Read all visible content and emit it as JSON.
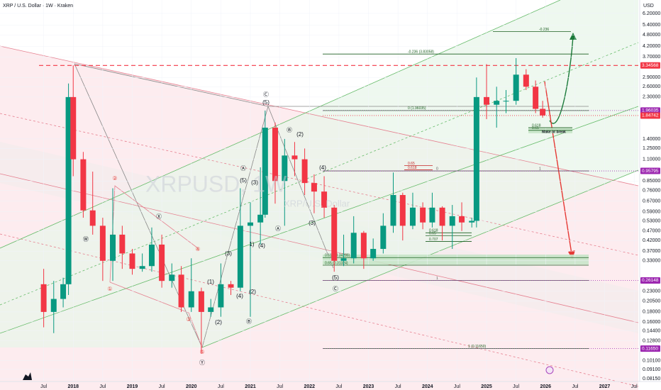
{
  "chart_data": {
    "type": "candlestick",
    "title": "XRP / U.S. Dollar · 1W · Kraken",
    "currency": "USD",
    "watermark": "XRPUSD, 1W",
    "watermark_sub": "XRP/U.S. Dollar",
    "log_scale": true,
    "up_color": "#089981",
    "down_color": "#f23645",
    "x": [
      2017.5,
      2017.67,
      2017.83,
      2017.92,
      2018.0,
      2018.17,
      2018.33,
      2018.5,
      2018.67,
      2018.83,
      2019.0,
      2019.17,
      2019.33,
      2019.5,
      2019.67,
      2019.83,
      2020.0,
      2020.17,
      2020.33,
      2020.5,
      2020.67,
      2020.83,
      2021.0,
      2021.17,
      2021.25,
      2021.42,
      2021.58,
      2021.75,
      2021.92,
      2022.08,
      2022.25,
      2022.42,
      2022.58,
      2022.75,
      2022.92,
      2023.08,
      2023.25,
      2023.42,
      2023.58,
      2023.75,
      2023.92,
      2024.08,
      2024.25,
      2024.42,
      2024.58,
      2024.75,
      2024.83,
      2025.0,
      2025.17,
      2025.33,
      2025.5,
      2025.67,
      2025.83,
      2025.95
    ],
    "open": [
      0.25,
      0.18,
      0.21,
      0.25,
      2.3,
      1.1,
      0.6,
      0.5,
      0.33,
      0.45,
      0.36,
      0.3,
      0.31,
      0.4,
      0.26,
      0.28,
      0.19,
      0.23,
      0.18,
      0.19,
      0.25,
      0.24,
      0.5,
      0.52,
      0.57,
      1.6,
      0.85,
      1.15,
      1.1,
      0.83,
      0.75,
      0.62,
      0.33,
      0.34,
      0.46,
      0.34,
      0.38,
      0.5,
      0.72,
      0.5,
      0.62,
      0.52,
      0.62,
      0.5,
      0.56,
      0.52,
      0.53,
      2.3,
      2.1,
      2.2,
      2.2,
      3.0,
      2.6,
      2.0
    ],
    "high": [
      0.3,
      0.26,
      0.27,
      2.7,
      3.35,
      1.2,
      0.95,
      0.55,
      0.78,
      0.5,
      0.38,
      0.36,
      0.49,
      0.45,
      0.32,
      0.31,
      0.34,
      0.24,
      0.21,
      0.32,
      0.26,
      0.78,
      0.66,
      1.0,
      1.96,
      1.7,
      1.4,
      1.35,
      1.25,
      0.92,
      0.9,
      0.64,
      0.45,
      0.56,
      0.47,
      0.43,
      0.58,
      0.94,
      0.74,
      0.74,
      0.66,
      0.74,
      0.63,
      0.64,
      0.66,
      0.55,
      2.9,
      3.4,
      2.6,
      2.5,
      3.65,
      3.2,
      2.8,
      2.2
    ],
    "low": [
      0.15,
      0.14,
      0.19,
      0.22,
      0.9,
      0.55,
      0.45,
      0.26,
      0.26,
      0.3,
      0.28,
      0.29,
      0.29,
      0.24,
      0.24,
      0.18,
      0.18,
      0.11,
      0.17,
      0.17,
      0.22,
      0.23,
      0.17,
      0.4,
      0.55,
      0.65,
      0.5,
      0.9,
      0.72,
      0.58,
      0.55,
      0.29,
      0.31,
      0.32,
      0.3,
      0.33,
      0.36,
      0.46,
      0.42,
      0.48,
      0.48,
      0.49,
      0.42,
      0.38,
      0.47,
      0.49,
      0.49,
      1.77,
      1.6,
      1.9,
      2.1,
      2.5,
      1.9,
      1.8
    ],
    "close": [
      0.18,
      0.21,
      0.25,
      2.3,
      1.1,
      0.6,
      0.5,
      0.33,
      0.45,
      0.36,
      0.3,
      0.31,
      0.4,
      0.26,
      0.28,
      0.19,
      0.23,
      0.18,
      0.19,
      0.25,
      0.24,
      0.5,
      0.52,
      0.57,
      1.6,
      0.85,
      1.15,
      1.1,
      0.83,
      0.75,
      0.62,
      0.33,
      0.34,
      0.46,
      0.34,
      0.38,
      0.5,
      0.72,
      0.5,
      0.62,
      0.52,
      0.62,
      0.5,
      0.56,
      0.52,
      0.53,
      2.3,
      2.1,
      2.2,
      2.2,
      3.0,
      2.6,
      2.0,
      1.85
    ],
    "xlim": [
      2016.76,
      2027.57
    ],
    "xticks": [
      {
        "value": 2017.5,
        "label": "Jul"
      },
      2018,
      {
        "value": 2018.5,
        "label": "Jul"
      },
      2019,
      {
        "value": 2019.5,
        "label": "Jul"
      },
      2020,
      {
        "value": 2020.5,
        "label": "Jul"
      },
      2021,
      {
        "value": 2021.5,
        "label": "Jul"
      },
      2022,
      {
        "value": 2022.5,
        "label": "Jul"
      },
      2023,
      {
        "value": 2023.5,
        "label": "Jul"
      },
      2024,
      {
        "value": 2024.5,
        "label": "Jul"
      },
      2025,
      {
        "value": 2025.5,
        "label": "Jul"
      },
      2026,
      {
        "value": 2026.5,
        "label": "Jul"
      },
      2027,
      {
        "value": 2027.5,
        "label": "Jul"
      }
    ],
    "ylim": [
      0.0789,
      7.27
    ],
    "yticks": [
      {
        "value": 6.2,
        "label": "6.20000"
      },
      {
        "value": 5.4,
        "label": "5.40000"
      },
      {
        "value": 4.8,
        "label": "4.80000"
      },
      {
        "value": 4.2,
        "label": "4.20000"
      },
      {
        "value": 3.7,
        "label": "3.70000"
      },
      {
        "value": 2.9,
        "label": "2.90000"
      },
      {
        "value": 2.6,
        "label": "2.60000"
      },
      {
        "value": 2.3,
        "label": "2.30000"
      },
      {
        "value": 1.4,
        "label": "1.40000"
      },
      {
        "value": 1.25,
        "label": "1.25000"
      },
      {
        "value": 1.1,
        "label": "1.10000"
      },
      {
        "value": 0.85,
        "label": "0.85000"
      },
      {
        "value": 0.76,
        "label": "0.76000"
      },
      {
        "value": 0.67,
        "label": "0.67000"
      },
      {
        "value": 0.59,
        "label": "0.59000"
      },
      {
        "value": 0.53,
        "label": "0.53000"
      },
      {
        "value": 0.47,
        "label": "0.47000"
      },
      {
        "value": 0.42,
        "label": "0.42000"
      },
      {
        "value": 0.37,
        "label": "0.37000"
      },
      {
        "value": 0.33,
        "label": "0.33000"
      },
      {
        "value": 0.23,
        "label": "0.23000"
      },
      {
        "value": 0.205,
        "label": "0.20500"
      },
      {
        "value": 0.18,
        "label": "0.18000"
      },
      {
        "value": 0.16,
        "label": "0.16000"
      },
      {
        "value": 0.144,
        "label": "0.14400"
      },
      {
        "value": 0.128,
        "label": "0.12800"
      },
      {
        "value": 0.101,
        "label": "0.10100"
      },
      {
        "value": 0.091,
        "label": "0.09100"
      },
      {
        "value": 0.0815,
        "label": "0.08150"
      }
    ],
    "price_labels": [
      {
        "value": 3.34568,
        "label": "3.34568",
        "color": "#f23645"
      },
      {
        "value": 1.96035,
        "label": "1.96035",
        "color": "#9c27b0"
      },
      {
        "value": 1.84742,
        "label": "1.84742",
        "color": "#f23645"
      },
      {
        "value": 0.95795,
        "label": "0.95795",
        "color": "#9c27b0"
      },
      {
        "value": 0.26148,
        "label": "0.26148",
        "color": "#9c27b0"
      },
      {
        "value": 0.1165,
        "label": "0.11650",
        "color": "#9c27b0"
      }
    ],
    "fib_levels": [
      {
        "value": 5.0,
        "label": "-0.236",
        "color": "#1b5e20"
      },
      {
        "value": 3.83058,
        "label": "-0.236 (3.83058)",
        "color": "#1b5e20"
      },
      {
        "value": 1.96035,
        "label": "0 (1.96035)",
        "color": "#1b5e20"
      },
      {
        "value": 1.6,
        "label": "0.618",
        "color": "#1b5e20"
      },
      {
        "value": 1.55,
        "label": "0.65",
        "color": "#1b5e20"
      },
      {
        "value": 1.02,
        "label": "0.65",
        "color": "#c62828"
      },
      {
        "value": 0.97,
        "label": "0.618",
        "color": "#c62828"
      },
      {
        "value": 0.95795,
        "label": "0",
        "color": "#555555"
      },
      {
        "value": 0.95795,
        "label": "1",
        "color": "#555555"
      },
      {
        "value": 0.46,
        "label": "0.618",
        "color": "#1b5e20"
      },
      {
        "value": 0.445,
        "label": "0.65",
        "color": "#1b5e20"
      },
      {
        "value": 0.415,
        "label": "0.707",
        "color": "#1b5e20"
      },
      {
        "value": 0.34288,
        "label": "0.618 (0.34288)",
        "color": "#1b5e20"
      },
      {
        "value": 0.31324,
        "label": "0.65 (0.31324)",
        "color": "#1b5e20"
      },
      {
        "value": 0.26148,
        "label": "1",
        "color": "#555555"
      },
      {
        "value": 0.1165,
        "label": "1 (0.11650)",
        "color": "#1b5e20"
      }
    ],
    "annotations": [
      "Ⓒ",
      "(5)",
      "Ⓑ",
      "(2)",
      "Ⓐ",
      "(5)",
      "(3)",
      "(4)",
      "Ⓐ",
      "(3)",
      "1)",
      "(4)",
      "(3)",
      "(1)",
      "(2)",
      "(4)",
      "(2)",
      "Ⓑ",
      "(5)",
      "Ⓒ",
      "②",
      "Ⓧ",
      "④",
      "Ⓦ",
      "①",
      "③",
      "⑤",
      "Ⓨ",
      "Make or break"
    ]
  }
}
